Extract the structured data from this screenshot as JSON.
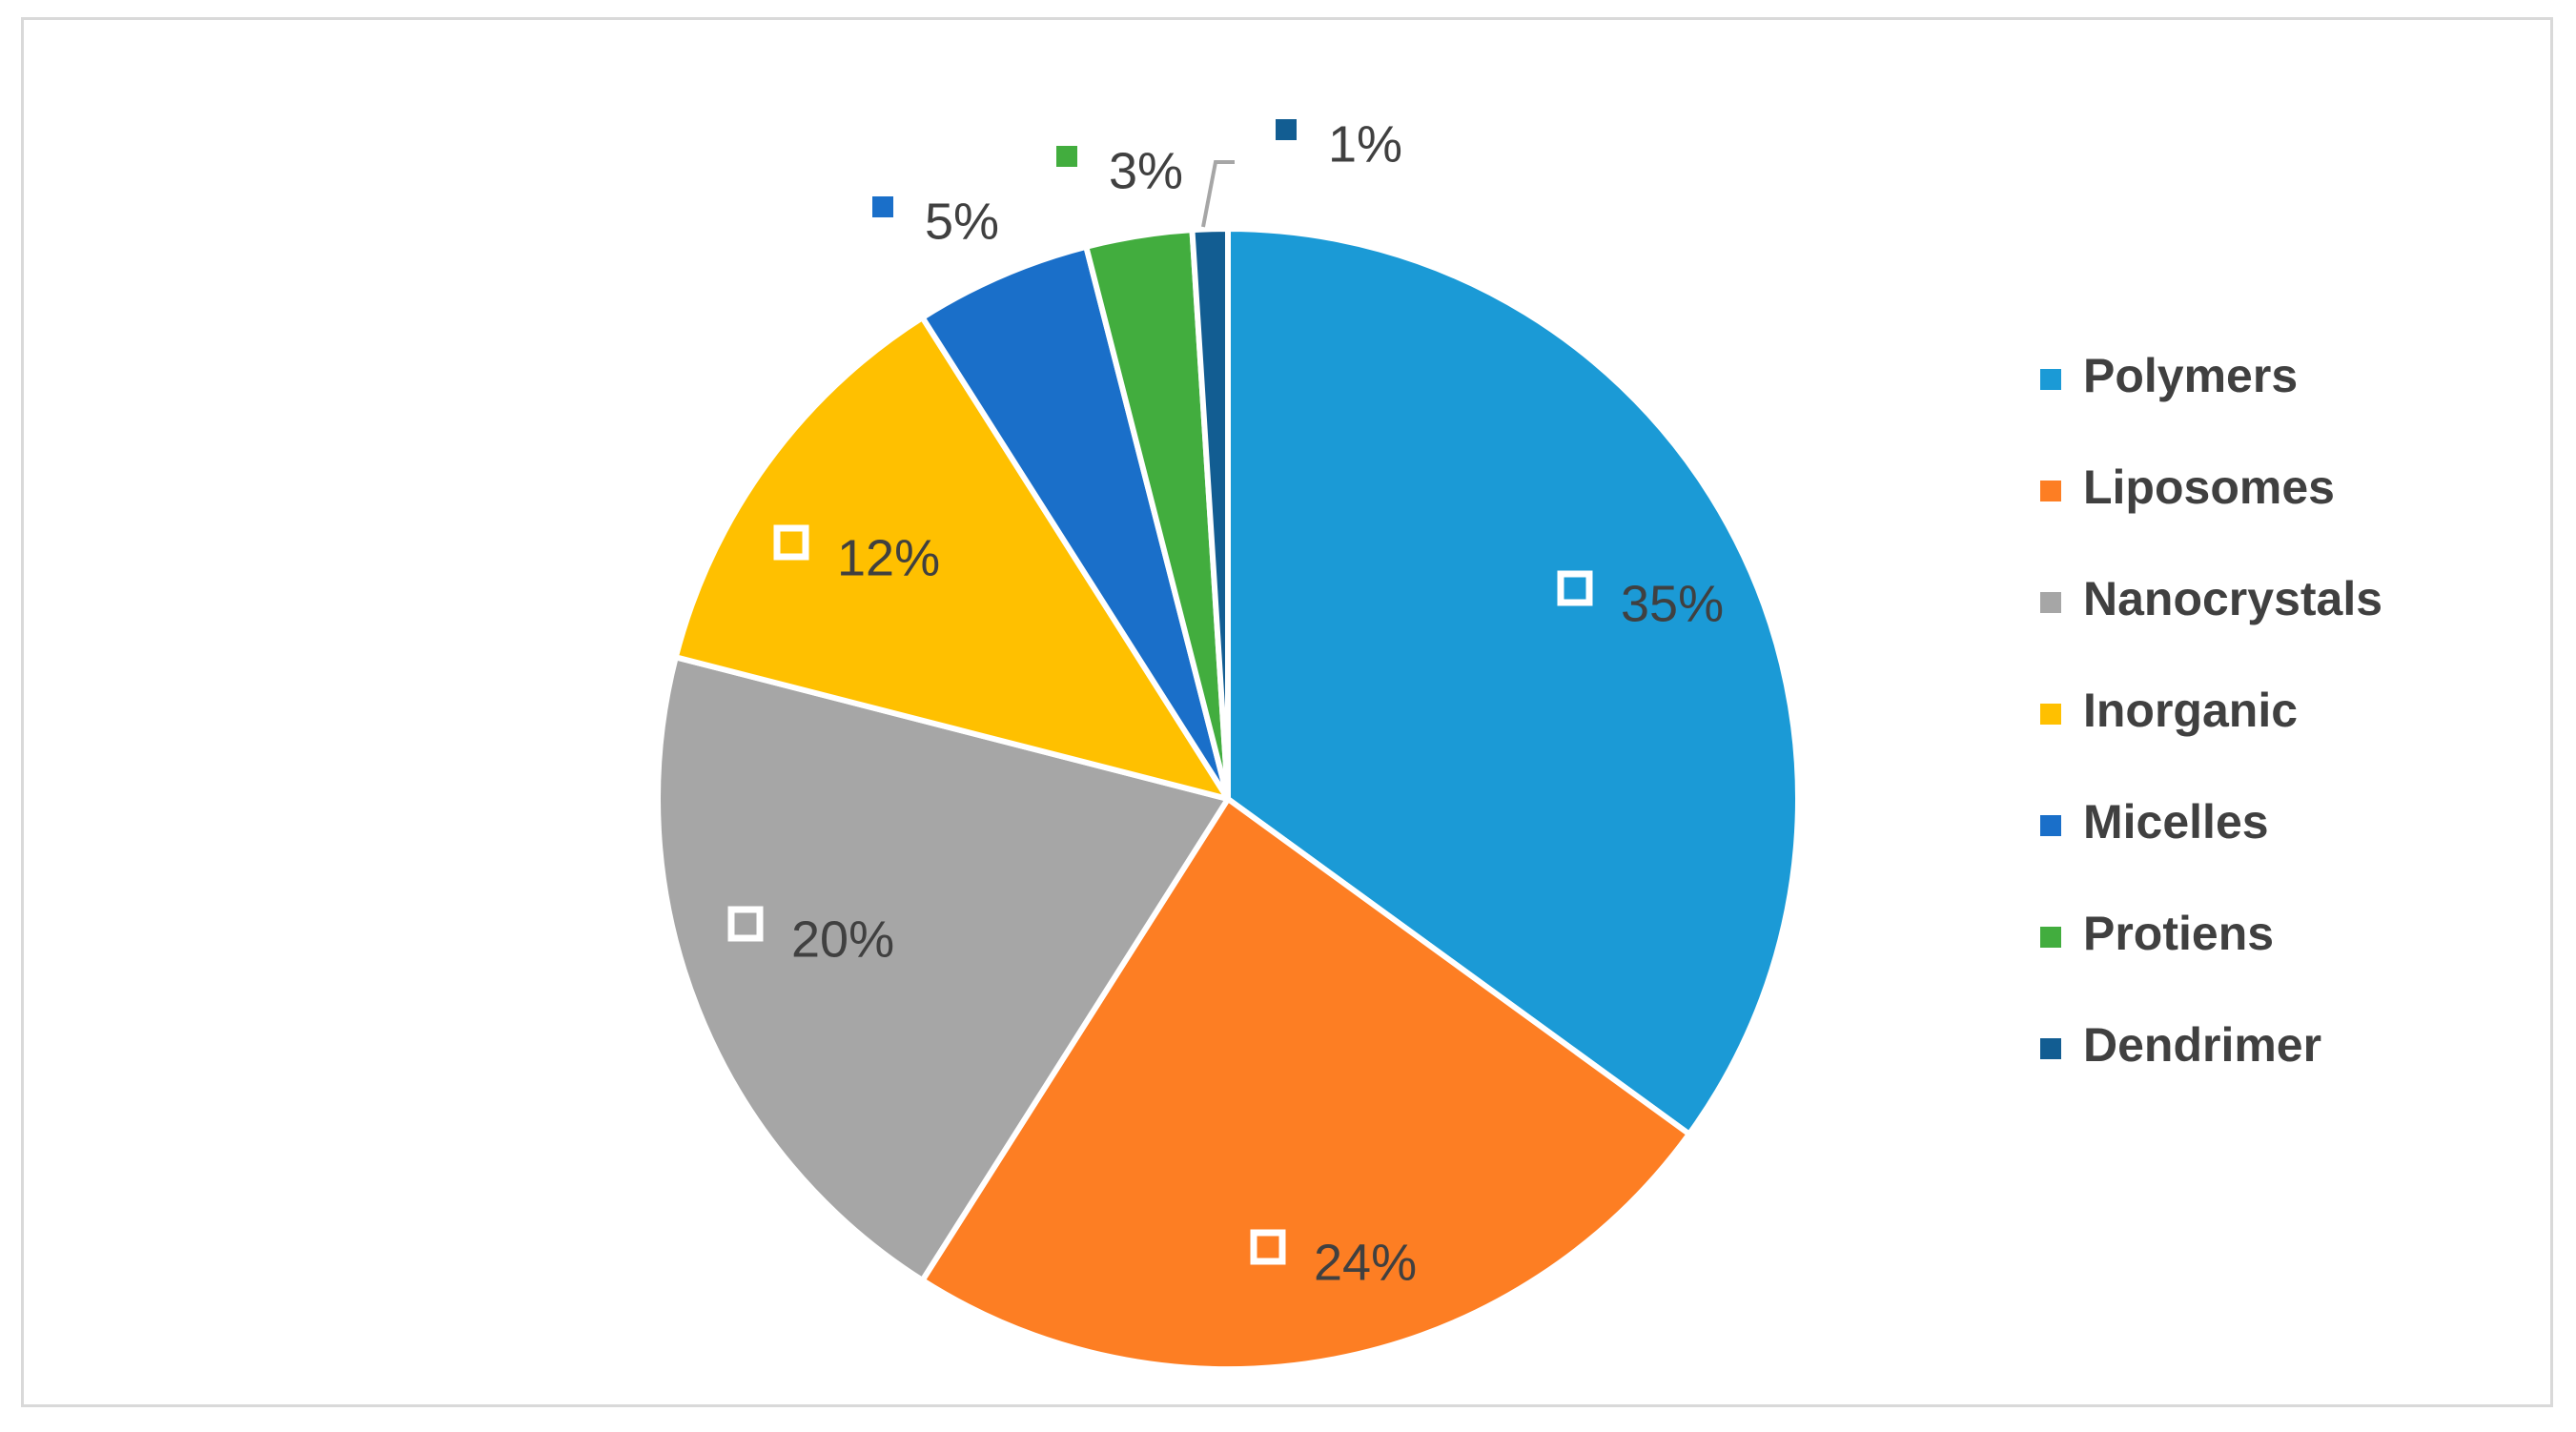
{
  "chart_data": {
    "type": "pie",
    "categories": [
      "Polymers",
      "Liposomes",
      "Nanocrystals",
      "Inorganic",
      "Micelles",
      "Protiens",
      "Dendrimer"
    ],
    "values": [
      35,
      24,
      20,
      12,
      5,
      3,
      1
    ],
    "data_labels": [
      "35%",
      "24%",
      "20%",
      "12%",
      "5%",
      "3%",
      "1%"
    ],
    "colors": [
      "#1b9ad6",
      "#fd7e23",
      "#a6a6a6",
      "#ffc000",
      "#1a6fc9",
      "#42ad3e",
      "#125d92"
    ],
    "legend_position": "right",
    "start_angle_deg": 0,
    "direction": "clockwise"
  }
}
